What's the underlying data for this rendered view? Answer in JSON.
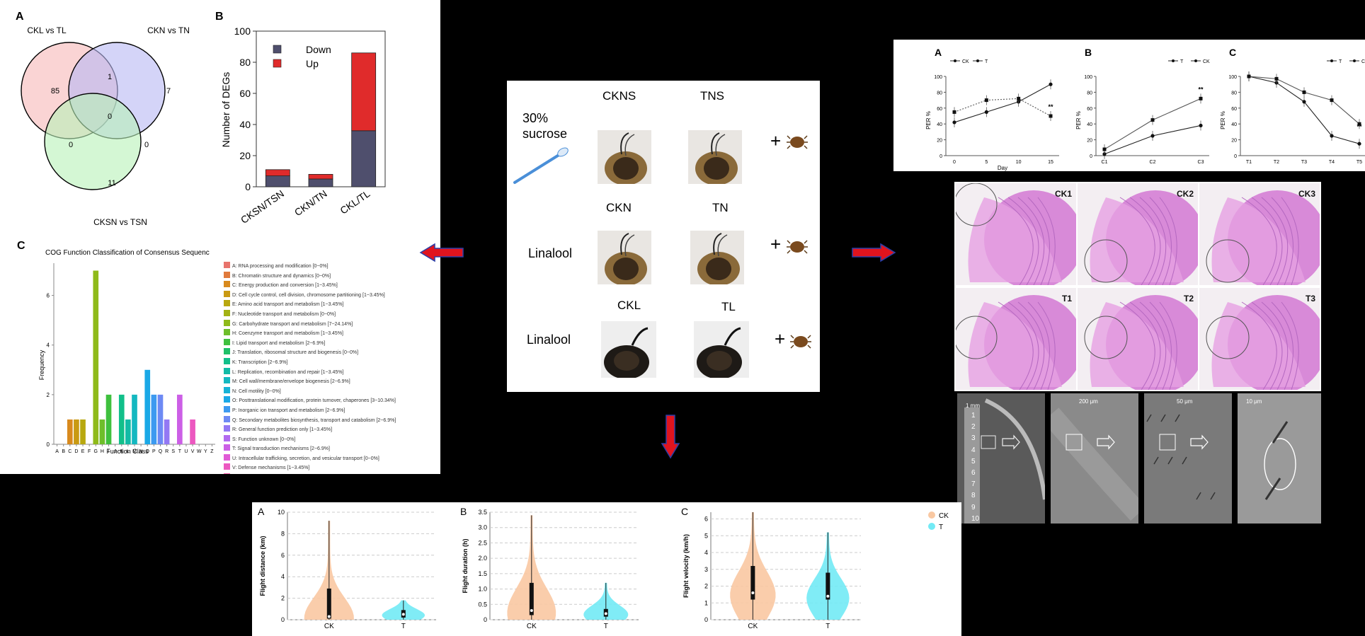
{
  "venn": {
    "panel_letter": "A",
    "sets": [
      "CKL vs TL",
      "CKN vs TN",
      "CKSN vs TSN"
    ],
    "set_colors": [
      "#f7b8b8",
      "#b8b8f4",
      "#b8f2b8"
    ],
    "region_values": {
      "only_1": "85",
      "only_2": "7",
      "only_3": "11",
      "ab": "1",
      "ac": "0",
      "bc": "0",
      "abc": "0"
    }
  },
  "degs": {
    "panel_letter": "B",
    "chart_data": {
      "type": "bar",
      "stacked": true,
      "categories": [
        "CKSN/TSN",
        "CKN/TN",
        "CKL/TL"
      ],
      "series": [
        {
          "name": "Down",
          "color": "#4f4f6d",
          "values": [
            7,
            5,
            36
          ]
        },
        {
          "name": "Up",
          "color": "#e02b2b",
          "values": [
            4,
            3,
            50
          ]
        }
      ],
      "ylabel": "Number of DEGs",
      "ylim": [
        0,
        100
      ],
      "yticks": [
        0,
        20,
        40,
        60,
        80,
        100
      ],
      "legend": "top-left"
    }
  },
  "cog": {
    "panel_letter": "C",
    "chart_data": {
      "type": "bar",
      "title": "COG Function Classification of Consensus Sequenc",
      "xlabel": "Function Class",
      "ylabel": "Frequency",
      "ylim": [
        0,
        7.3
      ],
      "yticks": [
        0,
        2,
        4,
        6
      ],
      "categories": [
        "A",
        "B",
        "C",
        "D",
        "E",
        "F",
        "G",
        "H",
        "I",
        "J",
        "K",
        "L",
        "M",
        "N",
        "O",
        "P",
        "Q",
        "R",
        "S",
        "T",
        "U",
        "V",
        "W",
        "Y",
        "Z"
      ],
      "values": [
        0,
        0,
        1,
        1,
        1,
        0,
        7,
        1,
        2,
        0,
        2,
        1,
        2,
        0,
        3,
        2,
        2,
        1,
        0,
        2,
        0,
        1,
        0,
        0,
        0
      ],
      "colors": [
        "#e8746c",
        "#e07a3c",
        "#d88a1e",
        "#c99a12",
        "#b8a80f",
        "#a3b213",
        "#8fba1a",
        "#6ebe2a",
        "#3fc03e",
        "#1fc068",
        "#12bf8a",
        "#12bba6",
        "#14b8c0",
        "#16b2d6",
        "#1aa8e6",
        "#3c9af0",
        "#6d8af4",
        "#9378f4",
        "#b26af0",
        "#cc5fe6",
        "#e05ad6",
        "#ec58c0",
        "#f25aa8",
        "#f2608e",
        "#ee6a7a"
      ],
      "legend_entries": [
        "A: RNA processing and modification [0~0%]",
        "B: Chromatin structure and dynamics [0~0%]",
        "C: Energy production and conversion [1~3.45%]",
        "D: Cell cycle control, cell division, chromosome partitioning [1~3.45%]",
        "E: Amino acid transport and metabolism [1~3.45%]",
        "F: Nucleotide transport and metabolism [0~0%]",
        "G: Carbohydrate transport and metabolism [7~24.14%]",
        "H: Coenzyme transport and metabolism [1~3.45%]",
        "I: Lipid transport and metabolism [2~6.9%]",
        "J: Translation, ribosomal structure and biogenesis [0~0%]",
        "K: Transcription [2~6.9%]",
        "L: Replication, recombination and repair [1~3.45%]",
        "M: Cell wall/membrane/envelope biogenesis [2~6.9%]",
        "N: Cell motility [0~0%]",
        "O: Posttranslational modification, protein turnover, chaperones [3~10.34%]",
        "P: Inorganic ion transport and metabolism [2~6.9%]",
        "Q: Secondary metabolites biosynthesis, transport and catabolism [2~6.9%]",
        "R: General function prediction only [1~3.45%]",
        "S: Function unknown [0~0%]",
        "T: Signal transduction mechanisms [2~6.9%]",
        "U: Intracellular trafficking, secretion, and vesicular transport [0~0%]",
        "V: Defense mechanisms [1~3.45%]",
        "W: Extracellular structures [0~0%]",
        "Y: Nuclear structure [0~0%]",
        "Z: Cytoskeleton [0~0%]"
      ]
    }
  },
  "center": {
    "row1": {
      "stimulus": "30% sucrose",
      "left": "CKNS",
      "right": "TNS"
    },
    "row2": {
      "stimulus": "Linalool",
      "left": "CKN",
      "right": "TN"
    },
    "row3": {
      "stimulus": "Linalool",
      "left": "CKL",
      "right": "TL"
    },
    "plus": "+"
  },
  "per": {
    "charts": [
      {
        "letter": "A",
        "type": "line",
        "ylabel": "PER %",
        "xlabel": "Day",
        "categories": [
          "0",
          "5",
          "10",
          "15"
        ],
        "yticks": [
          0,
          20,
          40,
          60,
          80,
          100
        ],
        "ylim": [
          0,
          100
        ],
        "legend": [
          "CK",
          "T"
        ],
        "significance": "**",
        "series": [
          {
            "name": "CK",
            "values": [
              42,
              55,
              68,
              90
            ]
          },
          {
            "name": "T",
            "values": [
              55,
              70,
              72,
              50
            ]
          }
        ]
      },
      {
        "letter": "B",
        "type": "line",
        "ylabel": "PER %",
        "xlabel": "",
        "categories": [
          "C1",
          "C2",
          "C3"
        ],
        "yticks": [
          0,
          20,
          40,
          60,
          80,
          100
        ],
        "ylim": [
          0,
          100
        ],
        "legend": [
          "T",
          "CK"
        ],
        "significance": "**",
        "series": [
          {
            "name": "T",
            "values": [
              2,
              25,
              38
            ]
          },
          {
            "name": "CK",
            "values": [
              8,
              45,
              72
            ]
          }
        ]
      },
      {
        "letter": "C",
        "type": "line",
        "ylabel": "PER %",
        "xlabel": "",
        "categories": [
          "T1",
          "T2",
          "T3",
          "T4",
          "T5"
        ],
        "yticks": [
          0,
          20,
          40,
          60,
          80,
          100
        ],
        "ylim": [
          0,
          100
        ],
        "legend": [
          "T",
          "CK"
        ],
        "significance": "**",
        "series": [
          {
            "name": "T",
            "values": [
              100,
              92,
              68,
              25,
              15
            ]
          },
          {
            "name": "CK",
            "values": [
              100,
              97,
              80,
              70,
              40
            ]
          }
        ]
      }
    ]
  },
  "histology": {
    "labels": [
      "CK1",
      "CK2",
      "CK3",
      "T1",
      "T2",
      "T3"
    ]
  },
  "sem": {
    "scales": [
      "1 mm",
      "200 μm",
      "50 μm",
      "10 μm"
    ],
    "segments": [
      "1",
      "2",
      "3",
      "4",
      "5",
      "6",
      "7",
      "8",
      "9",
      "10"
    ]
  },
  "flight": {
    "charts": [
      {
        "letter": "A",
        "type": "violin",
        "ylabel": "Flight distance (km)",
        "categories": [
          "CK",
          "T"
        ],
        "yticks": [
          0,
          2,
          4,
          6,
          8,
          10
        ],
        "ylim": [
          0,
          10
        ],
        "groups": [
          {
            "name": "CK",
            "median": 0.3,
            "q1": 0.1,
            "q3": 2.9,
            "max": 9.2
          },
          {
            "name": "T",
            "median": 0.5,
            "q1": 0.2,
            "q3": 0.9,
            "max": 1.8
          }
        ]
      },
      {
        "letter": "B",
        "type": "violin",
        "ylabel": "Flight duration (h)",
        "categories": [
          "CK",
          "T"
        ],
        "yticks": [
          0,
          0.5,
          1.0,
          1.5,
          2.0,
          2.5,
          3.0,
          3.5
        ],
        "ytick_labels": [
          "0",
          "0.5",
          "1.0",
          "1.5",
          "2.0",
          "2.5",
          "3.0",
          "3.5"
        ],
        "ylim": [
          0,
          3.5
        ],
        "groups": [
          {
            "name": "CK",
            "median": 0.3,
            "q1": 0.15,
            "q3": 1.2,
            "max": 3.4
          },
          {
            "name": "T",
            "median": 0.2,
            "q1": 0.1,
            "q3": 0.35,
            "max": 1.2
          }
        ]
      },
      {
        "letter": "C",
        "type": "violin",
        "ylabel": "Flight velocity (km/h)",
        "categories": [
          "CK",
          "T"
        ],
        "yticks": [
          0,
          1,
          2,
          3,
          4,
          5,
          6
        ],
        "ylim": [
          0,
          6.4
        ],
        "groups": [
          {
            "name": "CK",
            "median": 1.6,
            "q1": 1.2,
            "q3": 3.2,
            "max": 6.4
          },
          {
            "name": "T",
            "median": 1.4,
            "q1": 1.2,
            "q3": 2.8,
            "max": 5.2
          }
        ]
      }
    ],
    "legend": [
      {
        "name": "CK",
        "color": "#f9c8a2"
      },
      {
        "name": "T",
        "color": "#72eaf5"
      }
    ]
  },
  "colors": {
    "arrow": "#e0141e",
    "arrow_outline": "#2a3fa8"
  }
}
